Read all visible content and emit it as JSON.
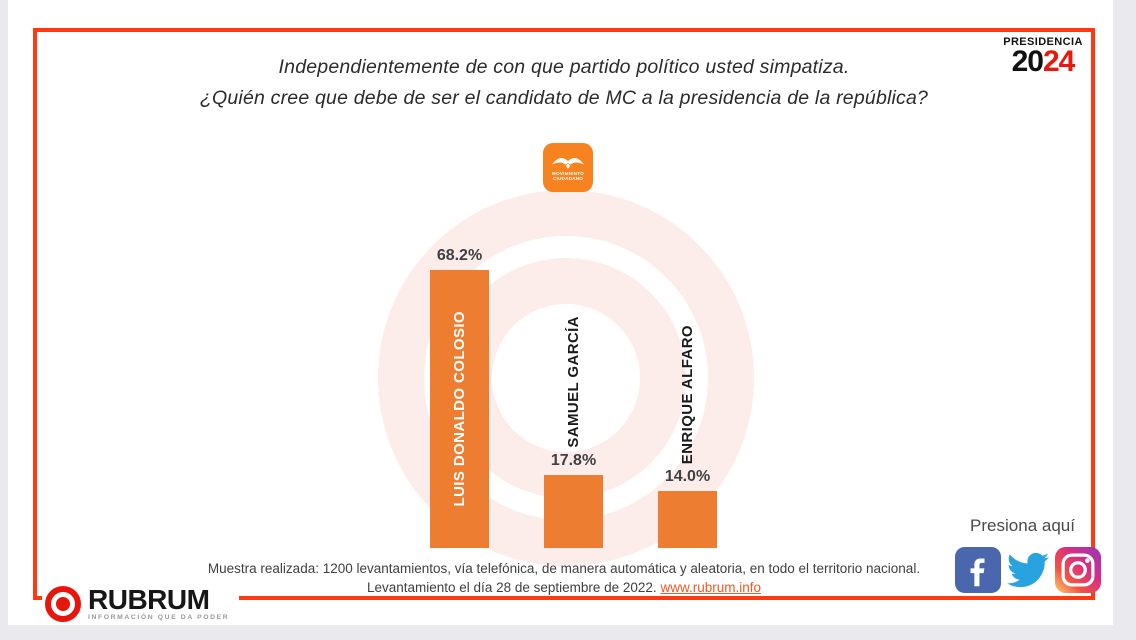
{
  "badge": {
    "title": "PRESIDENCIA",
    "year_black": "20",
    "year_red": "24"
  },
  "title": {
    "line1": "Independientemente de con que partido político usted simpatiza.",
    "line2": "¿Quién cree que debe de ser el candidato de MC a la presidencia de la república?"
  },
  "mc_logo": {
    "line1": "MOVIMIENTO",
    "line2": "CIUDADANO"
  },
  "chart_data": {
    "type": "bar",
    "categories": [
      "LUIS DONALDO COLOSIO",
      "SAMUEL GARCÍA",
      "ENRIQUE ALFARO"
    ],
    "values": [
      68.2,
      17.8,
      14.0
    ],
    "value_labels": [
      "68.2%",
      "17.8%",
      "14.0%"
    ],
    "bar_color": "#ED7D31",
    "label_inside_color": "#FFFFFF",
    "label_outside_color": "#1A1A1A",
    "background_motif": "pale concentric bullseye rings",
    "ylim": [
      0,
      70
    ],
    "legend": "none",
    "grid": "off"
  },
  "footer": {
    "line1": "Muestra realizada: 1200 levantamientos, vía telefónica, de manera automática y aleatoria, en todo el territorio nacional.",
    "line2_prefix": "Levantamiento el día 28 de septiembre de 2022. ",
    "link": "www.rubrum.info"
  },
  "social": {
    "label": "Presiona aquí",
    "icons": [
      "facebook",
      "twitter",
      "instagram"
    ]
  },
  "rubrum": {
    "name": "RUBRUM",
    "tagline": "INFORMACIÓN QUE DA PODER"
  },
  "colors": {
    "frame": "#FF3A12",
    "bar": "#ED7D31",
    "pale_ring": "#FCEDEA",
    "mc_orange": "#F78220",
    "year_red": "#E8190C",
    "link": "#E85A25"
  }
}
